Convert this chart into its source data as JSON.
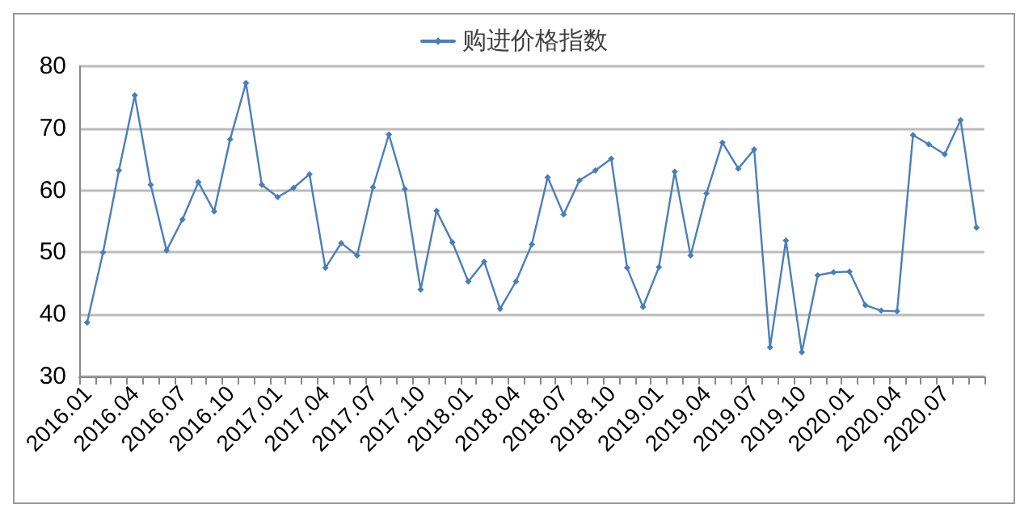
{
  "chart_data": {
    "type": "line",
    "categories": [
      "2016.01",
      null,
      null,
      "2016.04",
      null,
      null,
      "2016.07",
      null,
      null,
      "2016.10",
      null,
      null,
      "2017.01",
      null,
      null,
      "2017.04",
      null,
      null,
      "2017.07",
      null,
      null,
      "2017.10",
      null,
      null,
      "2018.01",
      null,
      null,
      "2018.04",
      null,
      null,
      "2018.07",
      null,
      null,
      "2018.10",
      null,
      null,
      "2019.01",
      null,
      null,
      "2019.04",
      null,
      null,
      "2019.07",
      null,
      null,
      "2019.10",
      null,
      null,
      "2020.01",
      null,
      null,
      "2020.04",
      null,
      null,
      "2020.07",
      null,
      null
    ],
    "series": [
      {
        "name": "购进价格指数",
        "color": "#4a7ebb",
        "values": [
          38.7,
          50,
          63.2,
          75.3,
          60.9,
          50.3,
          55.3,
          61.3,
          56.6,
          68.2,
          77.3,
          60.9,
          58.9,
          60.4,
          62.6,
          47.5,
          51.5,
          49.5,
          60.5,
          69.0,
          60.2,
          44.0,
          56.7,
          51.6,
          45.3,
          48.5,
          40.9,
          45.3,
          51.3,
          62.1,
          56.1,
          61.6,
          63.2,
          65.1,
          47.5,
          41.2,
          47.6,
          63.0,
          49.5,
          59.5,
          67.7,
          63.5,
          66.6,
          34.7,
          51.9,
          33.9,
          46.3,
          46.8,
          46.9,
          41.5,
          40.6,
          40.5,
          68.9,
          67.4,
          65.8,
          71.3,
          54.0
        ]
      }
    ],
    "ylim": [
      30,
      80
    ],
    "yticks": [
      30,
      40,
      50,
      60,
      70,
      80
    ],
    "grid": "y",
    "legend": "top",
    "marker": "diamond",
    "line_style": "solid"
  }
}
